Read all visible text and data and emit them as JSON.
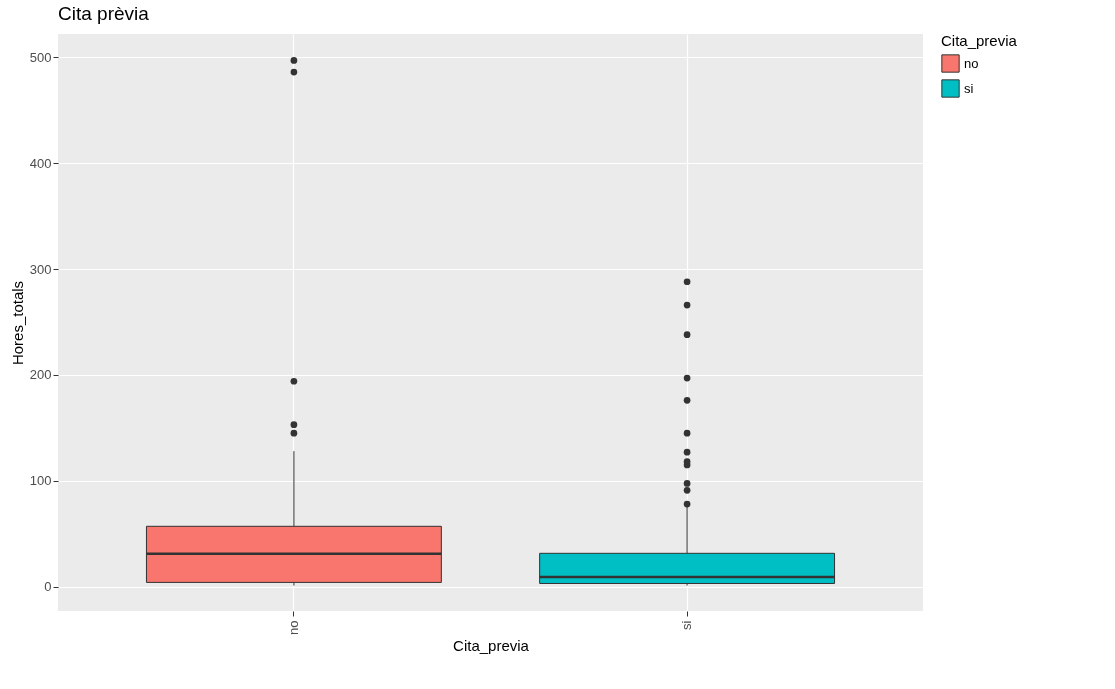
{
  "chart_data": {
    "type": "box",
    "title": "Cita prèvia",
    "xlabel": "Cita_previa",
    "ylabel": "Hores_totals",
    "legend_title": "Cita_previa",
    "categories": [
      "no",
      "si"
    ],
    "series": [
      {
        "name": "no",
        "color": "#f8766d",
        "boxes": [
          {
            "low": 1,
            "q1": 4,
            "median": 31,
            "q3": 57,
            "high": 128,
            "outliers": [
              497,
              486,
              194,
              153,
              145
            ]
          },
          null
        ]
      },
      {
        "name": "si",
        "color": "#00bfc4",
        "boxes": [
          null,
          {
            "low": 1,
            "q1": 3,
            "median": 9,
            "q3": 31.5,
            "high": 76,
            "outliers": [
              288,
              266,
              238,
              197,
              176,
              145,
              127,
              118,
              115,
              97.5,
              91,
              78
            ]
          }
        ]
      }
    ],
    "ylim": [
      -23,
      522
    ],
    "yticks": [
      0,
      100,
      200,
      300,
      400,
      500
    ],
    "grid": true,
    "legend": "right"
  }
}
